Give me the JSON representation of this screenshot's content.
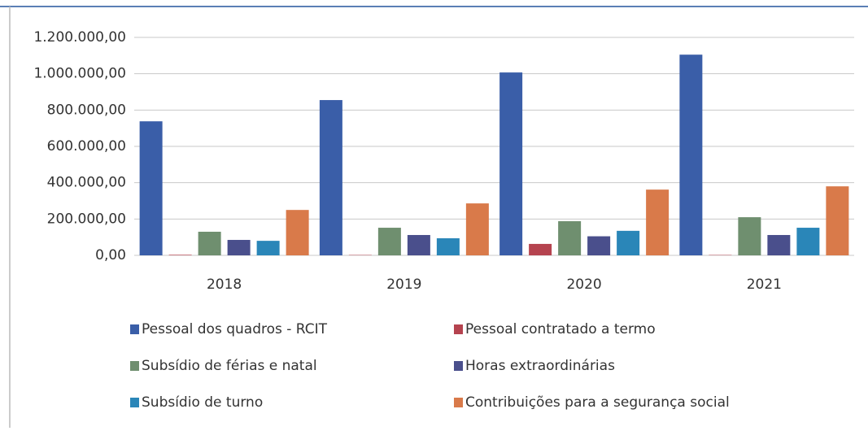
{
  "chart_data": {
    "type": "bar",
    "categories": [
      "2018",
      "2019",
      "2020",
      "2021"
    ],
    "series": [
      {
        "name": "Pessoal dos quadros - RCIT",
        "color": "#3a5ea8",
        "values": [
          738000,
          855000,
          1007000,
          1105000
        ]
      },
      {
        "name": "Pessoal contratado a termo",
        "color": "#b5434f",
        "values": [
          3000,
          2000,
          63000,
          2000
        ]
      },
      {
        "name": "Subsídio de férias e natal",
        "color": "#6f8f6f",
        "values": [
          130000,
          152000,
          188000,
          210000
        ]
      },
      {
        "name": "Horas extraordinárias",
        "color": "#4a4f8c",
        "values": [
          85000,
          112000,
          105000,
          112000
        ]
      },
      {
        "name": "Subsídio de turno",
        "color": "#2a86b8",
        "values": [
          80000,
          94000,
          135000,
          152000
        ]
      },
      {
        "name": "Contribuições para a segurança social",
        "color": "#d97a4a",
        "values": [
          250000,
          286000,
          362000,
          380000
        ]
      }
    ],
    "ylim": [
      0,
      1200000
    ],
    "yticks": [
      {
        "value": 0,
        "label": "0,00"
      },
      {
        "value": 200000,
        "label": "200.000,00"
      },
      {
        "value": 400000,
        "label": "400.000,00"
      },
      {
        "value": 600000,
        "label": "600.000,00"
      },
      {
        "value": 800000,
        "label": "800.000,00"
      },
      {
        "value": 1000000,
        "label": "1.000.000,00"
      },
      {
        "value": 1200000,
        "label": "1.200.000,00"
      }
    ],
    "grid": true
  }
}
